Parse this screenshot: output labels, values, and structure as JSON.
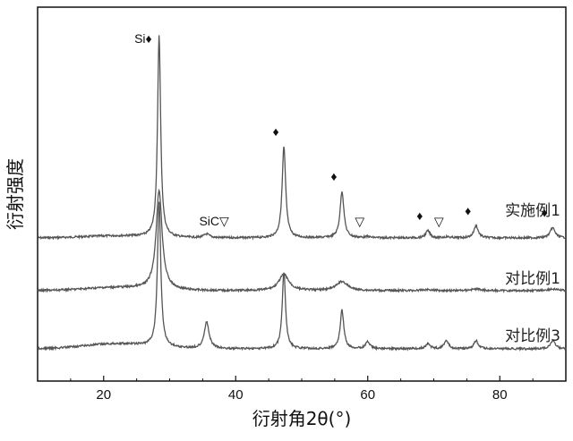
{
  "chart_data": {
    "type": "line",
    "xlabel": "衍射角2θ(°)",
    "ylabel": "衍射强度",
    "xlim": [
      10,
      90
    ],
    "x_ticks": [
      20,
      40,
      60,
      80
    ],
    "series": [
      {
        "name": "实施例1",
        "color": "#555555",
        "baseline": 1.0,
        "background": {
          "broad_center": 22,
          "broad_height": 0.1,
          "broad_width": 7
        },
        "peaks": [
          {
            "x": 28.4,
            "h": 10.0,
            "w": 0.28
          },
          {
            "x": 35.6,
            "h": 0.18,
            "w": 0.5
          },
          {
            "x": 47.3,
            "h": 4.5,
            "w": 0.32
          },
          {
            "x": 56.1,
            "h": 2.3,
            "w": 0.35
          },
          {
            "x": 60.0,
            "h": 0.05,
            "w": 0.5
          },
          {
            "x": 69.1,
            "h": 0.35,
            "w": 0.4
          },
          {
            "x": 72.0,
            "h": 0.05,
            "w": 0.5
          },
          {
            "x": 76.4,
            "h": 0.6,
            "w": 0.4
          },
          {
            "x": 88.0,
            "h": 0.5,
            "w": 0.45
          }
        ]
      },
      {
        "name": "对比例1",
        "color": "#555555",
        "baseline": 0.0,
        "background": {
          "broad_center": 22,
          "broad_height": 0.15,
          "broad_width": 7
        },
        "peaks": [
          {
            "x": 28.4,
            "h": 4.9,
            "w": 0.55
          },
          {
            "x": 47.3,
            "h": 0.8,
            "w": 0.9
          },
          {
            "x": 56.1,
            "h": 0.45,
            "w": 1.0
          },
          {
            "x": 69.1,
            "h": 0.05,
            "w": 1.0
          },
          {
            "x": 76.4,
            "h": 0.08,
            "w": 1.0
          },
          {
            "x": 88.0,
            "h": 0.08,
            "w": 1.0
          }
        ]
      },
      {
        "name": "对比例3",
        "color": "#555555",
        "baseline": -1.0,
        "background": {
          "broad_center": 22,
          "broad_height": 0.25,
          "broad_width": 7
        },
        "peaks": [
          {
            "x": 28.4,
            "h": 7.2,
            "w": 0.3
          },
          {
            "x": 35.6,
            "h": 1.3,
            "w": 0.45
          },
          {
            "x": 47.3,
            "h": 3.8,
            "w": 0.3
          },
          {
            "x": 56.1,
            "h": 1.9,
            "w": 0.33
          },
          {
            "x": 60.0,
            "h": 0.35,
            "w": 0.4
          },
          {
            "x": 69.1,
            "h": 0.25,
            "w": 0.4
          },
          {
            "x": 71.9,
            "h": 0.4,
            "w": 0.4
          },
          {
            "x": 76.4,
            "h": 0.4,
            "w": 0.4
          },
          {
            "x": 88.0,
            "h": 0.4,
            "w": 0.45
          }
        ]
      }
    ],
    "annotations": [
      {
        "text": "Si♦",
        "x": 28.4,
        "series": 0
      },
      {
        "text": "SiC▽",
        "x": 35.6,
        "series": 0
      },
      {
        "text": "♦",
        "x": 47.3,
        "series": 0
      },
      {
        "text": "♦",
        "x": 56.1,
        "series": 0
      },
      {
        "text": "▽",
        "x": 60.0,
        "series": 0
      },
      {
        "text": "♦",
        "x": 69.1,
        "series": 0
      },
      {
        "text": "▽",
        "x": 72.0,
        "series": 0
      },
      {
        "text": "♦",
        "x": 76.4,
        "series": 0
      },
      {
        "text": "♦",
        "x": 88.0,
        "series": 0
      }
    ]
  }
}
